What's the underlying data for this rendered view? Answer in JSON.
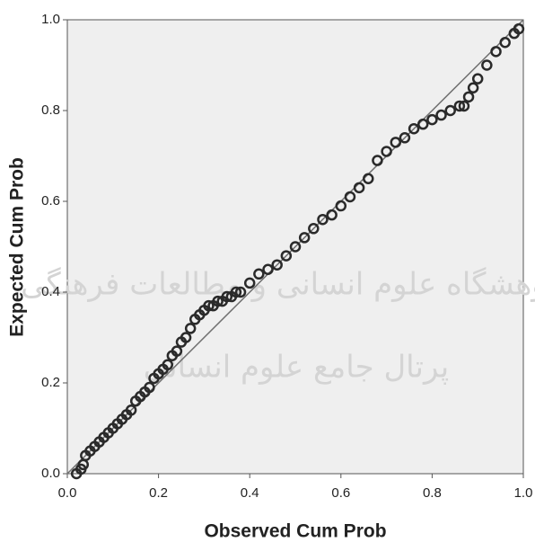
{
  "chart_data": {
    "type": "scatter",
    "xlabel": "Observed Cum Prob",
    "ylabel": "Expected Cum Prob",
    "watermark": [
      "پژوهشگاه علوم انسانی و مطالعات فرهنگی",
      "پرتال جامع علوم انسانی"
    ],
    "xlim": [
      0,
      1
    ],
    "ylim": [
      0,
      1
    ],
    "xticks": [
      {
        "value": 0,
        "label": "0.0"
      },
      {
        "value": 0.2,
        "label": "0.2"
      },
      {
        "value": 0.4,
        "label": "0.4"
      },
      {
        "value": 0.6,
        "label": "0.6"
      },
      {
        "value": 0.8,
        "label": "0.8"
      },
      {
        "value": 1,
        "label": "1.0"
      }
    ],
    "yticks": [
      {
        "value": 0,
        "label": "0.0"
      },
      {
        "value": 0.2,
        "label": "0.2"
      },
      {
        "value": 0.4,
        "label": "0.4"
      },
      {
        "value": 0.6,
        "label": "0.6"
      },
      {
        "value": 0.8,
        "label": "0.8"
      },
      {
        "value": 1,
        "label": "1.0"
      }
    ],
    "color": "#2a2a2a",
    "line_color": "#707070",
    "reference_line": {
      "x": [
        0,
        1
      ],
      "y": [
        0,
        1
      ]
    },
    "x": [
      0.02,
      0.03,
      0.035,
      0.04,
      0.05,
      0.06,
      0.07,
      0.08,
      0.09,
      0.1,
      0.11,
      0.12,
      0.13,
      0.14,
      0.15,
      0.16,
      0.17,
      0.18,
      0.19,
      0.2,
      0.21,
      0.22,
      0.23,
      0.24,
      0.25,
      0.26,
      0.27,
      0.28,
      0.29,
      0.3,
      0.31,
      0.32,
      0.33,
      0.34,
      0.35,
      0.36,
      0.37,
      0.38,
      0.4,
      0.42,
      0.44,
      0.46,
      0.48,
      0.5,
      0.52,
      0.54,
      0.56,
      0.58,
      0.6,
      0.62,
      0.64,
      0.66,
      0.68,
      0.7,
      0.72,
      0.74,
      0.76,
      0.78,
      0.8,
      0.82,
      0.84,
      0.86,
      0.87,
      0.88,
      0.89,
      0.9,
      0.92,
      0.94,
      0.96,
      0.98,
      0.99
    ],
    "values": [
      0.0,
      0.01,
      0.02,
      0.04,
      0.05,
      0.06,
      0.07,
      0.08,
      0.09,
      0.1,
      0.11,
      0.12,
      0.13,
      0.14,
      0.16,
      0.17,
      0.18,
      0.19,
      0.21,
      0.22,
      0.23,
      0.24,
      0.26,
      0.27,
      0.29,
      0.3,
      0.32,
      0.34,
      0.35,
      0.36,
      0.37,
      0.37,
      0.38,
      0.38,
      0.39,
      0.39,
      0.4,
      0.4,
      0.42,
      0.44,
      0.45,
      0.46,
      0.48,
      0.5,
      0.52,
      0.54,
      0.56,
      0.57,
      0.59,
      0.61,
      0.63,
      0.65,
      0.69,
      0.71,
      0.73,
      0.74,
      0.76,
      0.77,
      0.78,
      0.79,
      0.8,
      0.81,
      0.81,
      0.83,
      0.85,
      0.87,
      0.9,
      0.93,
      0.95,
      0.97,
      0.98
    ]
  }
}
